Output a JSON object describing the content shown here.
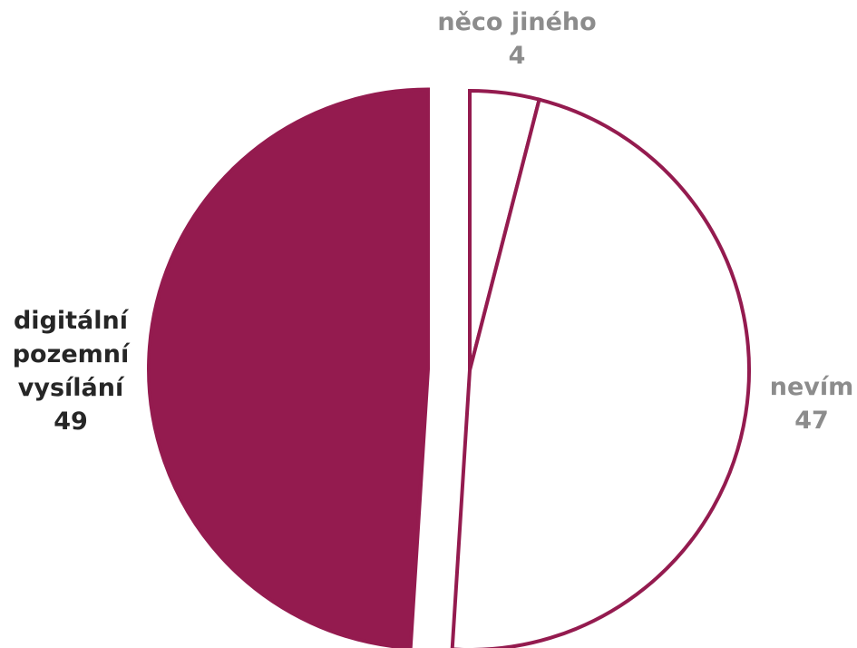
{
  "chart_data": {
    "type": "pie",
    "slices": [
      {
        "label_lines": [
          "něco jiného"
        ],
        "value": 4,
        "value_label": "4",
        "fill": "#ffffff",
        "stroke": "#941B4F",
        "text_color": "#8C8C8C"
      },
      {
        "label_lines": [
          "nevím"
        ],
        "value": 47,
        "value_label": "47",
        "fill": "#ffffff",
        "stroke": "#941B4F",
        "text_color": "#8C8C8C"
      },
      {
        "label_lines": [
          "digitální",
          "pozemní",
          "vysílání"
        ],
        "value": 49,
        "value_label": "49",
        "fill": "#941B4F",
        "stroke": "#941B4F",
        "text_color": "#262626"
      }
    ],
    "start_angle": "12 o'clock",
    "direction": "clockwise",
    "exploded_slice": "digitální pozemní vysílání",
    "legend": "none"
  }
}
